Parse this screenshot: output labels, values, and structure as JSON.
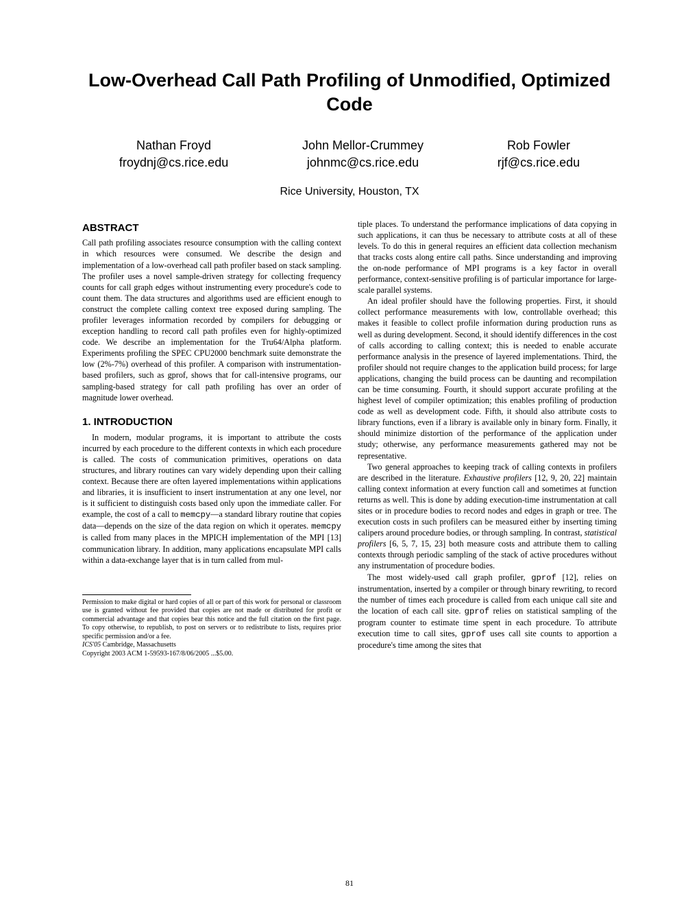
{
  "title": "Low-Overhead Call Path Profiling of Unmodified, Optimized Code",
  "authors": [
    {
      "name": "Nathan Froyd",
      "email": "froydnj@cs.rice.edu"
    },
    {
      "name": "John Mellor-Crummey",
      "email": "johnmc@cs.rice.edu"
    },
    {
      "name": "Rob Fowler",
      "email": "rjf@cs.rice.edu"
    }
  ],
  "affiliation": "Rice University, Houston, TX",
  "abstract_head": "ABSTRACT",
  "abstract_body": "Call path profiling associates resource consumption with the calling context in which resources were consumed. We describe the design and implementation of a low-overhead call path profiler based on stack sampling. The profiler uses a novel sample-driven strategy for collecting frequency counts for call graph edges without instrumenting every procedure's code to count them. The data structures and algorithms used are efficient enough to construct the complete calling context tree exposed during sampling. The profiler leverages information recorded by compilers for debugging or exception handling to record call path profiles even for highly-optimized code. We describe an implementation for the Tru64/Alpha platform. Experiments profiling the SPEC CPU2000 benchmark suite demonstrate the low (2%-7%) overhead of this profiler. A comparison with instrumentation-based profilers, such as gprof, shows that for call-intensive programs, our sampling-based strategy for call path profiling has over an order of magnitude lower overhead.",
  "intro_head": "1.    INTRODUCTION",
  "intro_p1_a": "In modern, modular programs, it is important to attribute the costs incurred by each procedure to the different contexts in which each procedure is called. The costs of communication primitives, operations on data structures, and library routines can vary widely depending upon their calling context. Because there are often layered implementations within applications and libraries, it is insufficient to insert instrumentation at any one level, nor is it sufficient to distinguish costs based only upon the immediate caller. For example, the cost of a call to ",
  "intro_p1_b": "—a standard library routine that copies data—depends on the size of the data region on which it operates. ",
  "intro_p1_c": " is called from many places in the MPICH implementation of the MPI [13] communication library. In addition, many applications encapsulate MPI calls within a data-exchange layer that is in turn called from mul-",
  "memcpy": "memcpy",
  "col2_p1": "tiple places. To understand the performance implications of data copying in such applications, it can thus be necessary to attribute costs at all of these levels. To do this in general requires an efficient data collection mechanism that tracks costs along entire call paths. Since understanding and improving the on-node performance of MPI programs is a key factor in overall performance, context-sensitive profiling is of particular importance for large-scale parallel systems.",
  "col2_p2": "An ideal profiler should have the following properties. First, it should collect performance measurements with low, controllable overhead; this makes it feasible to collect profile information during production runs as well as during development. Second, it should identify differences in the cost of calls according to calling context; this is needed to enable accurate performance analysis in the presence of layered implementations. Third, the profiler should not require changes to the application build process; for large applications, changing the build process can be daunting and recompilation can be time consuming. Fourth, it should support accurate profiling at the highest level of compiler optimization; this enables profiling of production code as well as development code. Fifth, it should also attribute costs to library functions, even if a library is available only in binary form. Finally, it should minimize distortion of the performance of the application under study; otherwise, any performance measurements gathered may not be representative.",
  "col2_p3_a": "Two general approaches to keeping track of calling contexts in profilers are described in the literature. ",
  "col2_p3_b": " [12, 9, 20, 22] maintain calling context information at every function call and sometimes at function returns as well. This is done by adding execution-time instrumentation at call sites or in procedure bodies to record nodes and edges in graph or tree. The execution costs in such profilers can be measured either by inserting timing calipers around procedure bodies, or through sampling. In contrast, ",
  "col2_p3_c": " [6, 5, 7, 15, 23] both measure costs and attribute them to calling contexts through periodic sampling of the stack of active procedures without any instrumentation of procedure bodies.",
  "exhaustive": "Exhaustive profilers",
  "statistical": "statistical profilers",
  "col2_p4_a": "The most widely-used call graph profiler, ",
  "col2_p4_b": " [12], relies on instrumentation, inserted by a compiler or through binary rewriting, to record the number of times each procedure is called from each unique call site and the location of each call site. ",
  "col2_p4_c": " relies on statistical sampling of the program counter to estimate time spent in each procedure. To attribute execution time to call sites, ",
  "col2_p4_d": " uses call site counts to apportion a procedure's time among the sites that",
  "gprof": "gprof",
  "permission": "Permission to make digital or hard copies of all or part of this work for personal or classroom use is granted without fee provided that copies are not made or distributed for profit or commercial advantage and that copies bear this notice and the full citation on the first page. To copy otherwise, to republish, to post on servers or to redistribute to lists, requires prior specific permission and/or a fee.",
  "conf": "ICS'05 ",
  "conf_loc": "Cambridge, Massachusetts",
  "copyright": "Copyright 2003 ACM 1-59593-167/8/06/2005 ...$5.00.",
  "pagenum": "81"
}
